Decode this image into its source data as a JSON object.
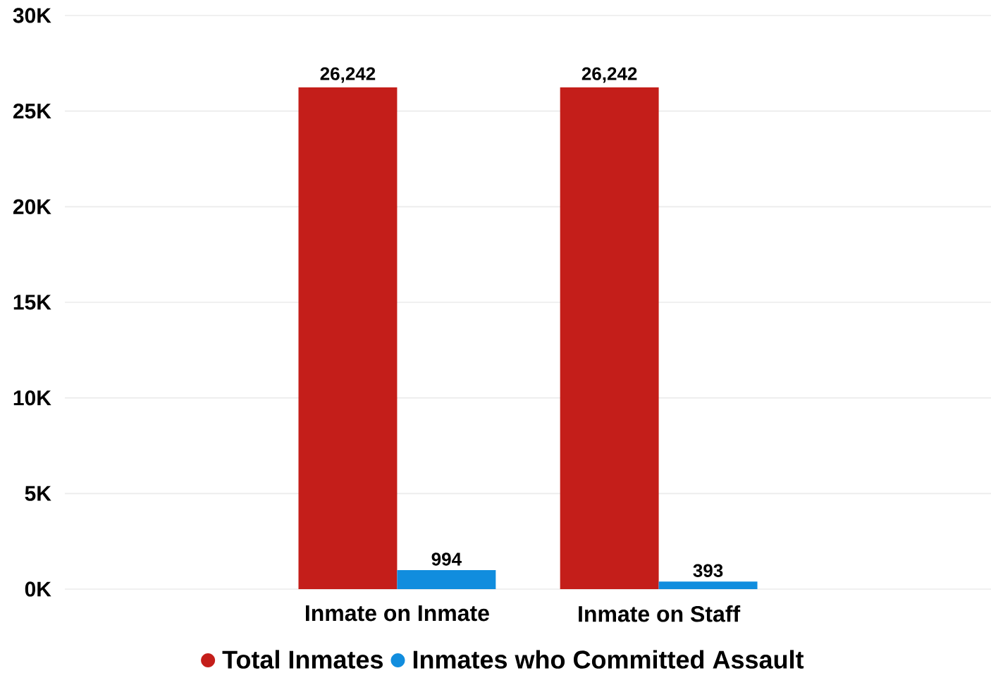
{
  "chart_data": {
    "type": "bar",
    "categories": [
      "Inmate on Inmate",
      "Inmate on Staff"
    ],
    "series": [
      {
        "name": "Total Inmates",
        "color": "#c41e1a",
        "values": [
          26242,
          26242
        ],
        "value_labels": [
          "26,242",
          "26,242"
        ]
      },
      {
        "name": "Inmates who Committed Assault",
        "color": "#118dde",
        "values": [
          994,
          393
        ],
        "value_labels": [
          "994",
          "393"
        ]
      }
    ],
    "ylim": [
      0,
      30000
    ],
    "yticks": [
      {
        "value": 0,
        "label": "0K"
      },
      {
        "value": 5000,
        "label": "5K"
      },
      {
        "value": 10000,
        "label": "10K"
      },
      {
        "value": 15000,
        "label": "15K"
      },
      {
        "value": 20000,
        "label": "20K"
      },
      {
        "value": 25000,
        "label": "25K"
      },
      {
        "value": 30000,
        "label": "30K"
      }
    ],
    "grid": "y",
    "legend": "bottom"
  }
}
